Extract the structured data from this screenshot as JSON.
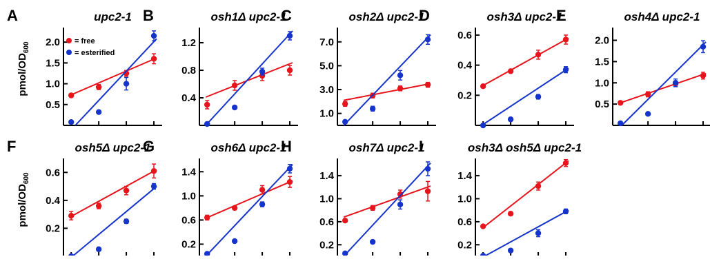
{
  "figure": {
    "ylabel_main": "pmol/OD",
    "ylabel_sub": "600",
    "legend": {
      "free": "= free",
      "esterified": "= esterified"
    },
    "colors": {
      "free": "#e8141c",
      "esterified": "#1434cc"
    }
  },
  "chart_data": [
    {
      "panel": "A",
      "title": "upc2-1",
      "type": "scatter",
      "ticks": [
        "0.5",
        "1.0",
        "1.5",
        "2.0"
      ],
      "ylim": [
        0,
        2.35
      ],
      "x": [
        1,
        2,
        3,
        4
      ],
      "series": [
        {
          "name": "free",
          "values": [
            0.72,
            0.92,
            1.25,
            1.6
          ],
          "err": [
            0.04,
            0.06,
            0.07,
            0.12
          ],
          "fit": [
            [
              0.95,
              0.72
            ],
            [
              4.1,
              1.62
            ]
          ]
        },
        {
          "name": "esterified",
          "values": [
            0.08,
            0.32,
            1.0,
            2.15
          ],
          "err": [
            0.03,
            0.04,
            0.15,
            0.12
          ],
          "fit": [
            [
              1.15,
              0.0
            ],
            [
              4.1,
              2.08
            ]
          ]
        }
      ]
    },
    {
      "panel": "B",
      "title": "osh1Δ upc2-1",
      "type": "scatter",
      "ticks": [
        "0.4",
        "0.8",
        "1.2"
      ],
      "ylim": [
        0,
        1.42
      ],
      "x": [
        1,
        2,
        3,
        4
      ],
      "series": [
        {
          "name": "free",
          "values": [
            0.3,
            0.58,
            0.72,
            0.8
          ],
          "err": [
            0.06,
            0.07,
            0.07,
            0.07
          ],
          "fit": [
            [
              0.95,
              0.41
            ],
            [
              4.1,
              0.91
            ]
          ]
        },
        {
          "name": "esterified",
          "values": [
            0.02,
            0.26,
            0.78,
            1.3
          ],
          "err": [
            0.02,
            0.02,
            0.05,
            0.06
          ],
          "fit": [
            [
              0.95,
              0.0
            ],
            [
              4.1,
              1.37
            ]
          ]
        }
      ]
    },
    {
      "panel": "C",
      "title": "osh2Δ upc2-1",
      "type": "scatter",
      "ticks": [
        "1.0",
        "3.0",
        "5.0",
        "7.0"
      ],
      "ylim": [
        0,
        8.2
      ],
      "x": [
        1,
        2,
        3,
        4
      ],
      "series": [
        {
          "name": "free",
          "values": [
            1.8,
            2.5,
            3.1,
            3.4
          ],
          "err": [
            0.2,
            0.2,
            0.2,
            0.2
          ],
          "fit": [
            [
              0.95,
              2.1
            ],
            [
              4.1,
              3.5
            ]
          ]
        },
        {
          "name": "esterified",
          "values": [
            0.3,
            1.4,
            4.2,
            7.2
          ],
          "err": [
            0.1,
            0.2,
            0.4,
            0.4
          ],
          "fit": [
            [
              0.95,
              -0.1
            ],
            [
              4.1,
              7.6
            ]
          ]
        }
      ]
    },
    {
      "panel": "D",
      "title": "osh3Δ upc2-1",
      "type": "scatter",
      "ticks": [
        "0.2",
        "0.4",
        "0.6"
      ],
      "ylim": [
        0,
        0.65
      ],
      "x": [
        1,
        2,
        3,
        4
      ],
      "series": [
        {
          "name": "free",
          "values": [
            0.26,
            0.36,
            0.47,
            0.57
          ],
          "err": [
            0.01,
            0.01,
            0.03,
            0.03
          ],
          "fit": [
            [
              0.95,
              0.26
            ],
            [
              4.1,
              0.58
            ]
          ]
        },
        {
          "name": "esterified",
          "values": [
            0.0,
            0.04,
            0.19,
            0.37
          ],
          "err": [
            0.005,
            0.01,
            0.015,
            0.02
          ],
          "fit": [
            [
              0.95,
              -0.02
            ],
            [
              4.1,
              0.38
            ]
          ]
        }
      ]
    },
    {
      "panel": "E",
      "title": "osh4Δ upc2-1",
      "type": "scatter",
      "ticks": [
        "0.5",
        "1.0",
        "1.5",
        "2.0"
      ],
      "ylim": [
        0,
        2.3
      ],
      "x": [
        1,
        2,
        3,
        4
      ],
      "series": [
        {
          "name": "free",
          "values": [
            0.53,
            0.73,
            0.98,
            1.17
          ],
          "err": [
            0.04,
            0.06,
            0.06,
            0.08
          ],
          "fit": [
            [
              0.95,
              0.52
            ],
            [
              4.1,
              1.22
            ]
          ]
        },
        {
          "name": "esterified",
          "values": [
            0.05,
            0.27,
            1.0,
            1.85
          ],
          "err": [
            0.02,
            0.03,
            0.09,
            0.14
          ],
          "fit": [
            [
              1.05,
              0.0
            ],
            [
              4.1,
              1.96
            ]
          ]
        }
      ]
    },
    {
      "panel": "F",
      "title": "osh5Δ upc2-1",
      "type": "scatter",
      "ticks": [
        "0.2",
        "0.4",
        "0.6"
      ],
      "ylim": [
        0,
        0.7
      ],
      "x": [
        1,
        2,
        3,
        4
      ],
      "series": [
        {
          "name": "free",
          "values": [
            0.29,
            0.36,
            0.47,
            0.61
          ],
          "err": [
            0.03,
            0.02,
            0.03,
            0.05
          ],
          "fit": [
            [
              0.95,
              0.28
            ],
            [
              4.1,
              0.62
            ]
          ]
        },
        {
          "name": "esterified",
          "values": [
            0.0,
            0.05,
            0.25,
            0.5
          ],
          "err": [
            0.005,
            0.01,
            0.015,
            0.02
          ],
          "fit": [
            [
              1.05,
              -0.02
            ],
            [
              4.1,
              0.5
            ]
          ]
        }
      ]
    },
    {
      "panel": "G",
      "title": "osh6Δ upc2-1",
      "type": "scatter",
      "ticks": [
        "0.2",
        "0.6",
        "1.0",
        "1.4"
      ],
      "ylim": [
        0,
        1.62
      ],
      "x": [
        1,
        2,
        3,
        4
      ],
      "series": [
        {
          "name": "free",
          "values": [
            0.64,
            0.8,
            1.1,
            1.23
          ],
          "err": [
            0.04,
            0.03,
            0.07,
            0.09
          ],
          "fit": [
            [
              0.95,
              0.63
            ],
            [
              4.1,
              1.25
            ]
          ]
        },
        {
          "name": "esterified",
          "values": [
            0.04,
            0.25,
            0.86,
            1.45
          ],
          "err": [
            0.02,
            0.02,
            0.04,
            0.07
          ],
          "fit": [
            [
              0.95,
              -0.02
            ],
            [
              4.1,
              1.52
            ]
          ]
        }
      ]
    },
    {
      "panel": "H",
      "title": "osh7Δ upc2-1",
      "type": "scatter",
      "ticks": [
        "0.2",
        "0.6",
        "1.0",
        "1.4"
      ],
      "ylim": [
        0,
        1.7
      ],
      "x": [
        1,
        2,
        3,
        4
      ],
      "series": [
        {
          "name": "free",
          "values": [
            0.62,
            0.84,
            1.08,
            1.13
          ],
          "err": [
            0.03,
            0.04,
            0.07,
            0.17
          ],
          "fit": [
            [
              0.95,
              0.68
            ],
            [
              4.1,
              1.22
            ]
          ]
        },
        {
          "name": "esterified",
          "values": [
            0.05,
            0.25,
            0.9,
            1.52
          ],
          "err": [
            0.02,
            0.02,
            0.08,
            0.12
          ],
          "fit": [
            [
              0.95,
              -0.02
            ],
            [
              4.1,
              1.62
            ]
          ]
        }
      ]
    },
    {
      "panel": "I",
      "title": "osh3Δ osh5Δ upc2-1",
      "type": "scatter",
      "ticks": [
        "0.2",
        "0.6",
        "1.0",
        "1.4"
      ],
      "ylim": [
        0,
        1.7
      ],
      "x": [
        1,
        2,
        3,
        4
      ],
      "series": [
        {
          "name": "free",
          "values": [
            0.52,
            0.74,
            1.22,
            1.62
          ],
          "err": [
            0.02,
            0.03,
            0.07,
            0.06
          ],
          "fit": [
            [
              0.95,
              0.48
            ],
            [
              4.1,
              1.66
            ]
          ]
        },
        {
          "name": "esterified",
          "values": [
            0.01,
            0.1,
            0.4,
            0.78
          ],
          "err": [
            0.01,
            0.02,
            0.06,
            0.04
          ],
          "fit": [
            [
              1.05,
              0.0
            ],
            [
              4.1,
              0.8
            ]
          ]
        }
      ]
    }
  ]
}
